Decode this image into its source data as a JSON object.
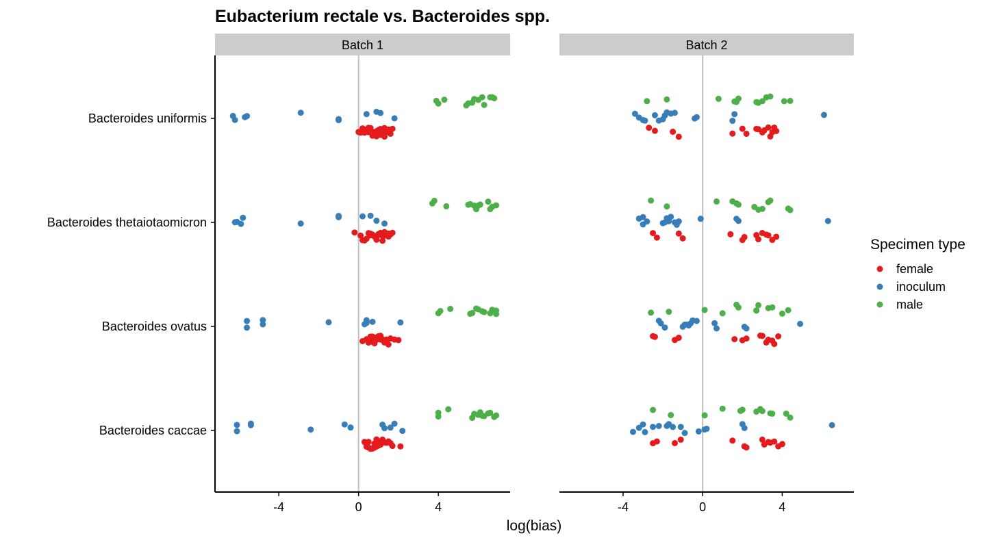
{
  "chart_data": {
    "type": "scatter",
    "title": "Eubacterium rectale vs. Bacteroides spp.",
    "xlabel": "log(bias)",
    "ylabel": "",
    "xlim": [
      -7.2,
      7.6
    ],
    "xticks": [
      -4,
      0,
      4
    ],
    "xtick_labels": [
      "-4",
      "0",
      "4"
    ],
    "reference_line_x": 0,
    "categories": [
      "Bacteroides uniformis",
      "Bacteroides thetaiotaomicron",
      "Bacteroides ovatus",
      "Bacteroides caccae"
    ],
    "legend": {
      "title": "Specimen type",
      "position": "right",
      "entries": [
        {
          "name": "female",
          "color": "#e41a1c"
        },
        {
          "name": "inoculum",
          "color": "#377eb8"
        },
        {
          "name": "male",
          "color": "#4daf4a"
        }
      ]
    },
    "panels": [
      {
        "label": "Batch 1",
        "series": [
          {
            "name": "female",
            "points": [
              {
                "category": "Bacteroides uniformis",
                "x": [
                  0.0,
                  0.1,
                  0.2,
                  0.3,
                  0.4,
                  0.5,
                  0.6,
                  0.7,
                  0.8,
                  0.9,
                  1.0,
                  1.1,
                  1.2,
                  1.3,
                  1.4,
                  1.5,
                  1.6,
                  1.7,
                  0.3,
                  0.7,
                  1.1,
                  0.5,
                  0.9,
                  1.3
                ]
              },
              {
                "category": "Bacteroides thetaiotaomicron",
                "x": [
                  -0.2,
                  0.1,
                  0.3,
                  0.5,
                  0.6,
                  0.8,
                  0.9,
                  1.0,
                  1.1,
                  1.2,
                  1.3,
                  1.4,
                  1.5,
                  1.6,
                  1.7,
                  0.4,
                  0.7,
                  1.0,
                  1.3,
                  0.2,
                  0.6,
                  0.9,
                  1.2,
                  1.5
                ]
              },
              {
                "category": "Bacteroides ovatus",
                "x": [
                  0.2,
                  0.4,
                  0.5,
                  0.6,
                  0.7,
                  0.8,
                  0.9,
                  1.0,
                  1.1,
                  1.2,
                  1.3,
                  1.4,
                  1.5,
                  1.6,
                  1.8,
                  2.0,
                  0.5,
                  0.8,
                  1.1,
                  1.4,
                  0.7,
                  1.0,
                  1.3,
                  0.6
                ]
              },
              {
                "category": "Bacteroides caccae",
                "x": [
                  0.3,
                  0.4,
                  0.5,
                  0.6,
                  0.7,
                  0.8,
                  0.9,
                  1.0,
                  1.1,
                  1.2,
                  1.3,
                  1.4,
                  1.5,
                  1.6,
                  1.7,
                  2.1,
                  0.5,
                  0.7,
                  0.9,
                  1.1,
                  0.4,
                  0.8,
                  1.2,
                  0.6
                ]
              }
            ]
          },
          {
            "name": "inoculum",
            "points": [
              {
                "category": "Bacteroides uniformis",
                "x": [
                  -6.3,
                  -6.2,
                  -5.7,
                  -5.6,
                  -2.9,
                  -1.0,
                  -1.0,
                  0.4,
                  0.9,
                  1.1,
                  1.8
                ]
              },
              {
                "category": "Bacteroides thetaiotaomicron",
                "x": [
                  -6.2,
                  -6.1,
                  -5.9,
                  -5.8,
                  -2.9,
                  -1.0,
                  -1.0,
                  0.2,
                  0.6,
                  0.9,
                  1.3
                ]
              },
              {
                "category": "Bacteroides ovatus",
                "x": [
                  -5.6,
                  -5.6,
                  -4.8,
                  -4.8,
                  -1.5,
                  0.3,
                  0.4,
                  0.4,
                  0.7,
                  2.1
                ]
              },
              {
                "category": "Bacteroides caccae",
                "x": [
                  -6.1,
                  -6.1,
                  -5.4,
                  -5.4,
                  -2.4,
                  -0.7,
                  -0.4,
                  1.2,
                  1.3,
                  1.6,
                  1.8,
                  2.2
                ]
              }
            ]
          },
          {
            "name": "male",
            "points": [
              {
                "category": "Bacteroides uniformis",
                "x": [
                  3.9,
                  4.0,
                  4.3,
                  5.4,
                  5.5,
                  5.7,
                  5.8,
                  6.0,
                  6.2,
                  6.3,
                  6.6,
                  6.7,
                  6.8
                ]
              },
              {
                "category": "Bacteroides thetaiotaomicron",
                "x": [
                  3.7,
                  3.8,
                  4.4,
                  5.5,
                  5.6,
                  5.8,
                  5.9,
                  6.0,
                  6.1,
                  6.5,
                  6.6,
                  6.7,
                  6.9
                ]
              },
              {
                "category": "Bacteroides ovatus",
                "x": [
                  4.0,
                  4.1,
                  4.6,
                  5.6,
                  5.7,
                  5.9,
                  6.0,
                  6.2,
                  6.3,
                  6.6,
                  6.7,
                  6.9,
                  6.9
                ]
              },
              {
                "category": "Bacteroides caccae",
                "x": [
                  4.0,
                  4.0,
                  4.5,
                  5.7,
                  5.8,
                  6.0,
                  6.1,
                  6.2,
                  6.3,
                  6.5,
                  6.6,
                  6.8,
                  6.9
                ]
              }
            ]
          }
        ]
      },
      {
        "label": "Batch 2",
        "series": [
          {
            "name": "female",
            "points": [
              {
                "category": "Bacteroides uniformis",
                "x": [
                  -2.7,
                  -2.4,
                  -1.5,
                  -1.2,
                  1.5,
                  2.0,
                  2.2,
                  2.7,
                  2.8,
                  3.0,
                  3.1,
                  3.3,
                  3.4,
                  3.5,
                  3.6,
                  3.7
                ]
              },
              {
                "category": "Bacteroides thetaiotaomicron",
                "x": [
                  -2.5,
                  -2.3,
                  -1.2,
                  -1.0,
                  1.4,
                  2.0,
                  2.1,
                  2.7,
                  2.8,
                  3.0,
                  3.2,
                  3.3,
                  3.5,
                  3.7
                ]
              },
              {
                "category": "Bacteroides ovatus",
                "x": [
                  -2.5,
                  -2.4,
                  -1.4,
                  -1.2,
                  1.6,
                  2.0,
                  2.2,
                  2.9,
                  3.0,
                  3.2,
                  3.3,
                  3.5,
                  3.6,
                  3.8
                ]
              },
              {
                "category": "Bacteroides caccae",
                "x": [
                  -2.5,
                  -2.3,
                  -1.4,
                  -1.1,
                  1.5,
                  2.1,
                  2.2,
                  3.0,
                  3.1,
                  3.3,
                  3.4,
                  3.6,
                  3.8,
                  4.0
                ]
              }
            ]
          },
          {
            "name": "inoculum",
            "points": [
              {
                "category": "Bacteroides uniformis",
                "x": [
                  -3.4,
                  -3.2,
                  -3.0,
                  -2.9,
                  -2.4,
                  -2.2,
                  -2.0,
                  -1.9,
                  -1.8,
                  -1.6,
                  -1.4,
                  -0.4,
                  -0.3,
                  1.5,
                  1.6,
                  6.1
                ]
              },
              {
                "category": "Bacteroides thetaiotaomicron",
                "x": [
                  -3.2,
                  -3.0,
                  -3.0,
                  -2.8,
                  -2.0,
                  -1.9,
                  -1.8,
                  -1.7,
                  -1.6,
                  -1.4,
                  -1.3,
                  -1.2,
                  -0.1,
                  1.7,
                  1.8,
                  6.3
                ]
              },
              {
                "category": "Bacteroides ovatus",
                "x": [
                  -2.2,
                  -2.1,
                  -1.9,
                  -1.0,
                  -0.9,
                  -0.8,
                  -0.7,
                  -0.6,
                  -0.5,
                  -0.3,
                  0.6,
                  0.7,
                  2.1,
                  2.2,
                  4.9
                ]
              },
              {
                "category": "Bacteroides caccae",
                "x": [
                  -3.5,
                  -3.2,
                  -3.0,
                  -2.9,
                  -2.5,
                  -2.2,
                  -1.8,
                  -1.7,
                  -1.5,
                  -1.1,
                  -0.9,
                  -0.2,
                  0.1,
                  0.2,
                  2.0,
                  2.1,
                  6.5
                ]
              }
            ]
          },
          {
            "name": "male",
            "points": [
              {
                "category": "Bacteroides uniformis",
                "x": [
                  -2.8,
                  -1.8,
                  0.8,
                  1.6,
                  1.7,
                  1.8,
                  2.7,
                  2.8,
                  3.0,
                  3.2,
                  3.4,
                  4.1,
                  4.4
                ]
              },
              {
                "category": "Bacteroides thetaiotaomicron",
                "x": [
                  -2.6,
                  -1.8,
                  0.7,
                  1.5,
                  1.7,
                  1.8,
                  2.6,
                  2.8,
                  3.0,
                  3.3,
                  3.4,
                  4.3,
                  4.4
                ]
              },
              {
                "category": "Bacteroides ovatus",
                "x": [
                  -2.6,
                  -1.7,
                  0.1,
                  1.0,
                  1.7,
                  1.8,
                  2.7,
                  2.8,
                  2.7,
                  3.3,
                  3.5,
                  4.0,
                  4.3
                ]
              },
              {
                "category": "Bacteroides caccae",
                "x": [
                  -2.5,
                  -1.6,
                  0.1,
                  1.0,
                  1.9,
                  2.0,
                  2.7,
                  2.9,
                  3.0,
                  3.4,
                  3.5,
                  4.2,
                  4.4
                ]
              }
            ]
          }
        ]
      }
    ]
  }
}
